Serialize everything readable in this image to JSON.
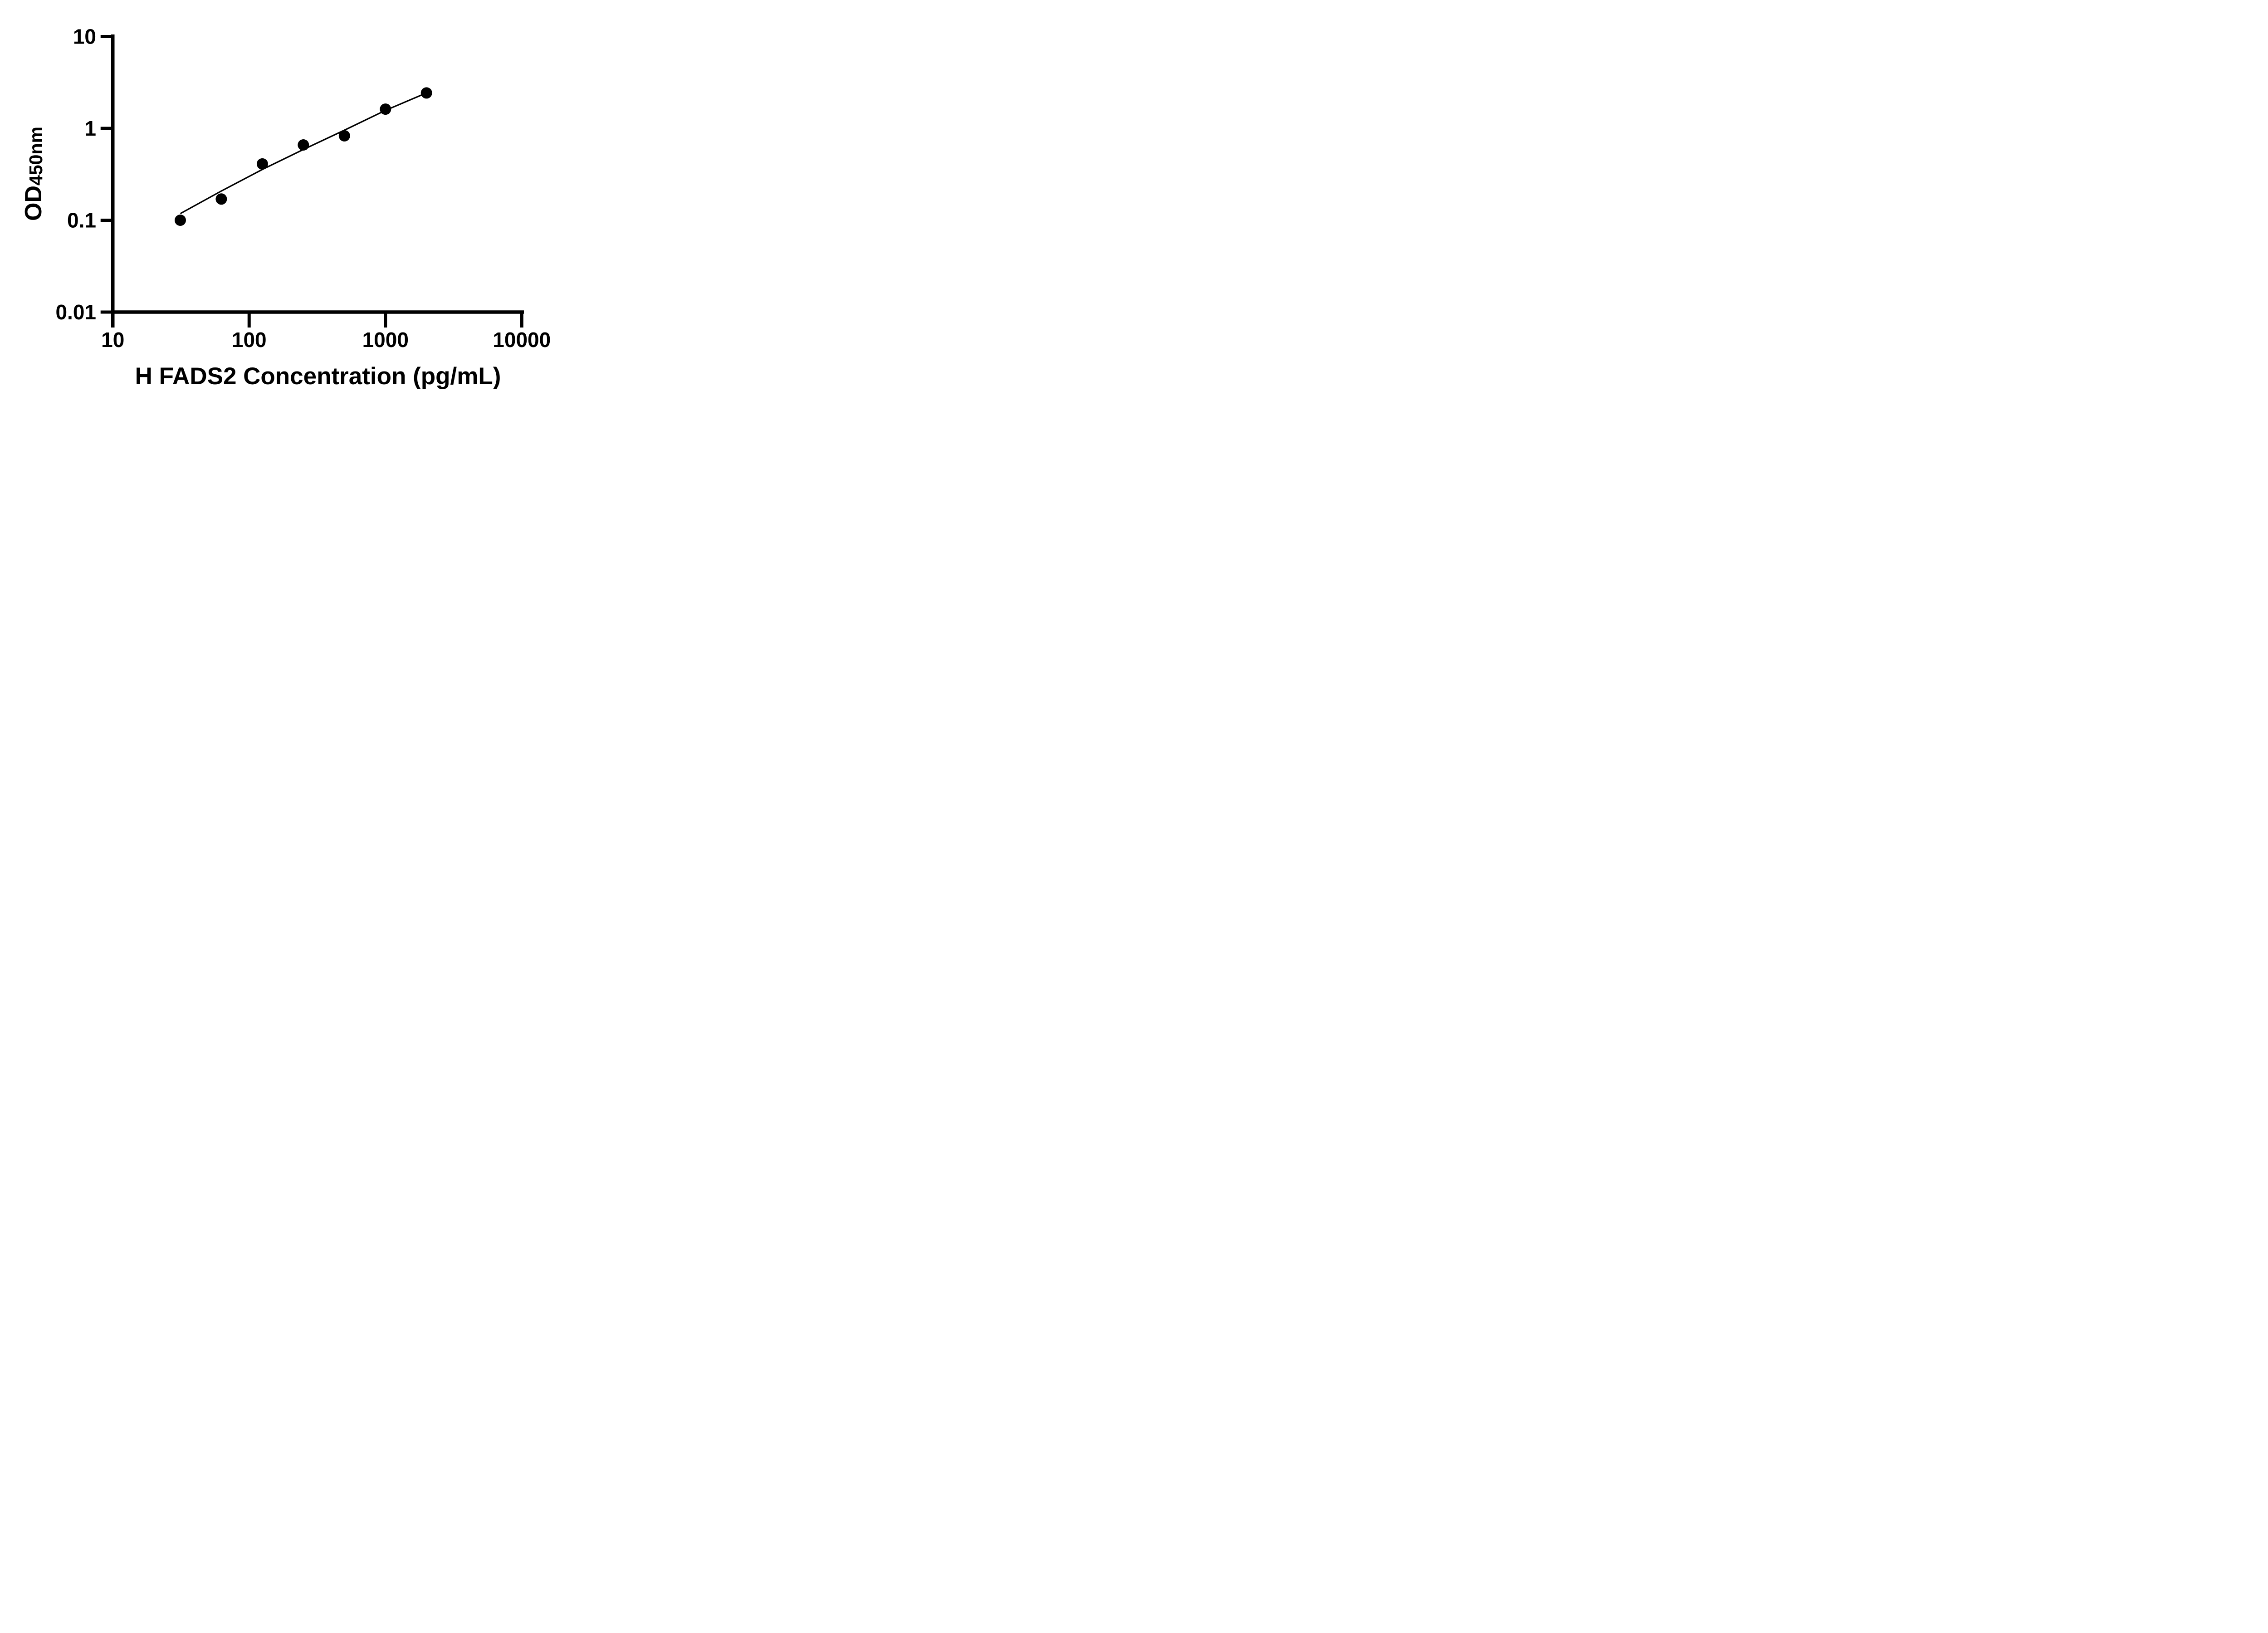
{
  "page": {
    "background_color": "#ffffff",
    "foreground_color": "#000000",
    "title": ""
  },
  "chart_data": {
    "type": "scatter",
    "title": "",
    "xlabel": "H FADS2 Concentration (pg/mL)",
    "ylabel_main": "OD",
    "ylabel_sub": "450nm",
    "x_scale": "log10",
    "y_scale": "log10",
    "xlim": [
      10,
      10000
    ],
    "ylim": [
      0.01,
      10
    ],
    "grid": false,
    "legend": null,
    "x_ticks": [
      10,
      100,
      1000,
      10000
    ],
    "x_tick_labels": [
      "10",
      "100",
      "1000",
      "10000"
    ],
    "y_ticks": [
      10,
      1,
      0.1,
      0.01
    ],
    "y_tick_labels": [
      "10",
      "1",
      "0.1",
      "0.01"
    ],
    "marker_color": "#000000",
    "line_color": "#000000",
    "series": [
      {
        "name": "standard-points",
        "type": "scatter",
        "marker": "filled-circle",
        "x": [
          31.25,
          62.5,
          125,
          250,
          500,
          1000,
          2000
        ],
        "y": [
          0.1,
          0.17,
          0.41,
          0.66,
          0.83,
          1.62,
          2.43
        ]
      },
      {
        "name": "fit-line",
        "type": "line",
        "x": [
          31.25,
          62.5,
          125,
          250,
          500,
          1000,
          2000
        ],
        "y": [
          0.118,
          0.208,
          0.357,
          0.589,
          0.956,
          1.57,
          2.43
        ]
      }
    ]
  }
}
